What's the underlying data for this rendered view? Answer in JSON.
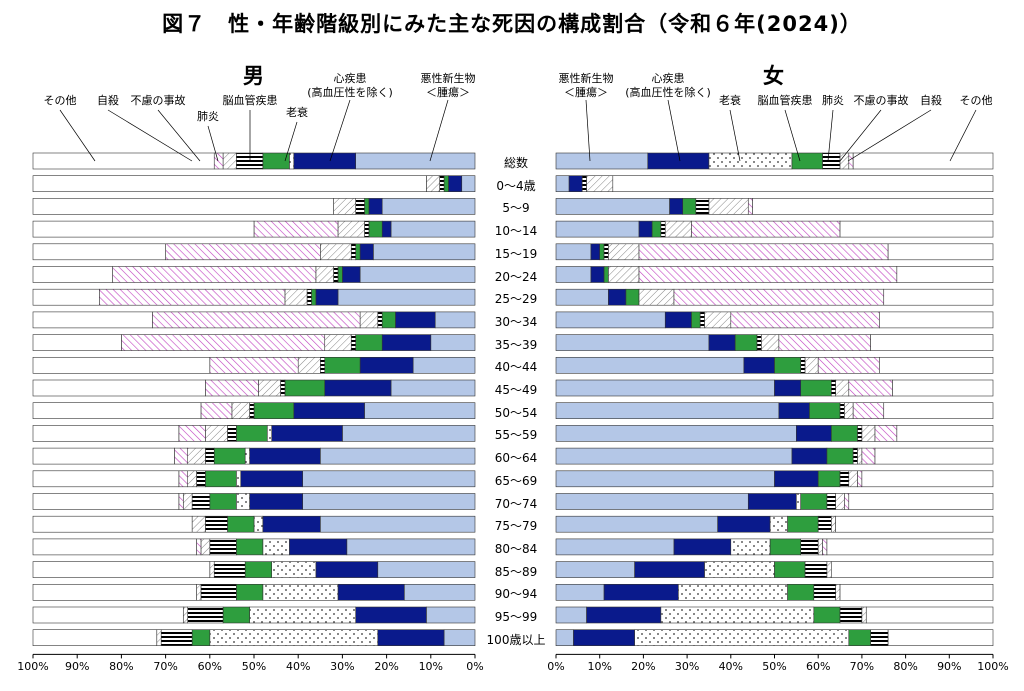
{
  "title": "図７　性・年齢階級別にみた主な死因の構成割合（令和６年(2024)）",
  "chart_data": [
    {
      "type": "bar",
      "orientation": "horizontal-stacked",
      "title": "男",
      "axis_direction": "right-to-left",
      "xlim": [
        0,
        100
      ],
      "xticks": [
        "100%",
        "90%",
        "80%",
        "70%",
        "60%",
        "50%",
        "40%",
        "30%",
        "20%",
        "10%",
        "0%"
      ],
      "categories": [
        "総数",
        "0～4歳",
        "5～9",
        "10～14",
        "15～19",
        "20～24",
        "25～29",
        "30～34",
        "35～39",
        "40～44",
        "45～49",
        "50～54",
        "55～59",
        "60～64",
        "65～69",
        "70～74",
        "75～79",
        "80～84",
        "85～89",
        "90～94",
        "95～99",
        "100歳以上"
      ],
      "legend": [
        {
          "label": "悪性新生物\n＜腫瘍＞",
          "key": "cancer"
        },
        {
          "label": "心疾患\n(高血圧性を除く)",
          "key": "heart"
        },
        {
          "label": "老衰",
          "key": "senility"
        },
        {
          "label": "脳血管疾患",
          "key": "cerebro"
        },
        {
          "label": "肺炎",
          "key": "pneumonia"
        },
        {
          "label": "不慮の事故",
          "key": "accident"
        },
        {
          "label": "自殺",
          "key": "suicide"
        },
        {
          "label": "その他",
          "key": "other"
        }
      ],
      "series": [
        {
          "key": "cancer",
          "values": [
            27,
            3,
            21,
            19,
            23,
            26,
            31,
            9,
            10,
            14,
            19,
            25,
            30,
            35,
            39,
            39,
            35,
            29,
            22,
            16,
            11,
            7
          ]
        },
        {
          "key": "heart",
          "values": [
            14,
            3,
            3,
            2,
            3,
            4,
            5,
            9,
            11,
            12,
            15,
            16,
            16,
            16,
            14,
            12,
            13,
            13,
            14,
            15,
            16,
            15
          ]
        },
        {
          "key": "senility",
          "values": [
            1,
            0,
            0,
            0,
            0,
            0,
            0,
            0,
            0,
            0,
            0,
            0,
            1,
            1,
            1,
            3,
            2,
            6,
            10,
            17,
            24,
            38
          ]
        },
        {
          "key": "cerebro",
          "values": [
            6,
            1,
            1,
            3,
            1,
            1,
            1,
            3,
            6,
            8,
            9,
            9,
            7,
            7,
            7,
            6,
            6,
            6,
            6,
            6,
            6,
            4
          ]
        },
        {
          "key": "pneumonia",
          "values": [
            6,
            1,
            2,
            1,
            1,
            1,
            1,
            1,
            1,
            1,
            1,
            1,
            2,
            2,
            2,
            4,
            5,
            6,
            7,
            8,
            8,
            7
          ]
        },
        {
          "key": "accident",
          "values": [
            3,
            3,
            5,
            6,
            7,
            4,
            5,
            4,
            6,
            5,
            5,
            4,
            5,
            4,
            2,
            2,
            3,
            2,
            1,
            1,
            1,
            1
          ]
        },
        {
          "key": "suicide",
          "values": [
            2,
            0,
            0,
            19,
            35,
            46,
            42,
            47,
            46,
            20,
            12,
            7,
            6,
            3,
            2,
            1,
            0,
            1,
            0,
            0,
            0,
            0
          ]
        },
        {
          "key": "other",
          "values": [
            41,
            89,
            68,
            50,
            30,
            18,
            15,
            27,
            20,
            40,
            39,
            38,
            33,
            32,
            33,
            33,
            36,
            37,
            40,
            37,
            34,
            28
          ]
        }
      ]
    },
    {
      "type": "bar",
      "orientation": "horizontal-stacked",
      "title": "女",
      "axis_direction": "left-to-right",
      "xlim": [
        0,
        100
      ],
      "xticks": [
        "0%",
        "10%",
        "20%",
        "30%",
        "40%",
        "50%",
        "60%",
        "70%",
        "80%",
        "90%",
        "100%"
      ],
      "categories": [
        "総数",
        "0～4歳",
        "5～9",
        "10～14",
        "15～19",
        "20～24",
        "25～29",
        "30～34",
        "35～39",
        "40～44",
        "45～49",
        "50～54",
        "55～59",
        "60～64",
        "65～69",
        "70～74",
        "75～79",
        "80～84",
        "85～89",
        "90～94",
        "95～99",
        "100歳以上"
      ],
      "legend": [
        {
          "label": "悪性新生物\n＜腫瘍＞",
          "key": "cancer"
        },
        {
          "label": "心疾患\n(高血圧性を除く)",
          "key": "heart"
        },
        {
          "label": "老衰",
          "key": "senility"
        },
        {
          "label": "脳血管疾患",
          "key": "cerebro"
        },
        {
          "label": "肺炎",
          "key": "pneumonia"
        },
        {
          "label": "不慮の事故",
          "key": "accident"
        },
        {
          "label": "自殺",
          "key": "suicide"
        },
        {
          "label": "その他",
          "key": "other"
        }
      ],
      "series": [
        {
          "key": "cancer",
          "values": [
            21,
            3,
            26,
            19,
            8,
            8,
            12,
            25,
            35,
            43,
            50,
            51,
            55,
            54,
            50,
            44,
            37,
            27,
            18,
            11,
            7,
            4
          ]
        },
        {
          "key": "heart",
          "values": [
            14,
            3,
            3,
            3,
            2,
            3,
            4,
            6,
            6,
            7,
            6,
            7,
            8,
            8,
            10,
            11,
            12,
            13,
            16,
            17,
            17,
            14
          ]
        },
        {
          "key": "senility",
          "values": [
            19,
            0,
            0,
            0,
            0,
            0,
            0,
            0,
            0,
            0,
            0,
            0,
            0,
            0,
            0,
            1,
            4,
            9,
            16,
            25,
            35,
            49
          ]
        },
        {
          "key": "cerebro",
          "values": [
            7,
            0,
            3,
            2,
            1,
            1,
            3,
            2,
            5,
            6,
            7,
            7,
            6,
            6,
            5,
            6,
            7,
            7,
            7,
            6,
            6,
            5
          ]
        },
        {
          "key": "pneumonia",
          "values": [
            4,
            1,
            3,
            1,
            1,
            0,
            0,
            1,
            1,
            1,
            1,
            1,
            1,
            1,
            2,
            2,
            3,
            4,
            5,
            5,
            5,
            4
          ]
        },
        {
          "key": "accident",
          "values": [
            2,
            6,
            9,
            6,
            7,
            7,
            8,
            6,
            4,
            3,
            3,
            2,
            3,
            1,
            2,
            2,
            1,
            1,
            1,
            1,
            1,
            0
          ]
        },
        {
          "key": "suicide",
          "values": [
            1,
            0,
            1,
            34,
            57,
            59,
            48,
            34,
            21,
            14,
            10,
            7,
            5,
            3,
            1,
            1,
            0,
            1,
            0,
            0,
            0,
            0
          ]
        },
        {
          "key": "other",
          "values": [
            32,
            87,
            55,
            35,
            24,
            22,
            25,
            26,
            28,
            26,
            23,
            25,
            22,
            27,
            30,
            33,
            36,
            38,
            37,
            35,
            29,
            24
          ]
        }
      ]
    }
  ]
}
